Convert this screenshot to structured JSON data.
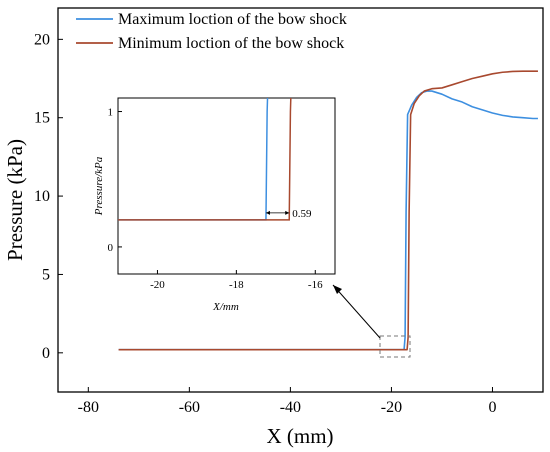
{
  "chart_data": {
    "type": "line",
    "xlabel": "X (mm)",
    "ylabel": "Pressure (kPa)",
    "xlim": [
      -86,
      10
    ],
    "ylim": [
      -2.5,
      22
    ],
    "xticks": [
      "-80",
      "-60",
      "-40",
      "-20",
      "0"
    ],
    "xtick_values": [
      -80,
      -60,
      -40,
      -20,
      0
    ],
    "yticks": [
      "0",
      "5",
      "10",
      "15",
      "20"
    ],
    "ytick_values": [
      0,
      5,
      10,
      15,
      20
    ],
    "legend_position": "top-left",
    "grid": false,
    "series": [
      {
        "name": "Maximum loction of the bow shock",
        "color": "#3d8fe0",
        "x": [
          -74,
          -17.5,
          -17.3,
          -17.1,
          -16.8,
          -16,
          -15,
          -14,
          -13,
          -12,
          -10,
          -8,
          -6,
          -4,
          -2,
          0,
          2,
          4,
          6,
          8,
          9
        ],
        "y": [
          0.2,
          0.2,
          1.0,
          9.0,
          15.2,
          15.8,
          16.3,
          16.6,
          16.7,
          16.7,
          16.5,
          16.2,
          16.0,
          15.7,
          15.5,
          15.3,
          15.15,
          15.05,
          15.0,
          14.95,
          14.95
        ]
      },
      {
        "name": "Minimum loction of the bow shock",
        "color": "#a8492f",
        "x": [
          -74,
          -16.9,
          -16.7,
          -16.5,
          -16.2,
          -15.5,
          -14.5,
          -13.5,
          -12,
          -10,
          -8,
          -6,
          -4,
          -2,
          0,
          2,
          4,
          6,
          8,
          9
        ],
        "y": [
          0.2,
          0.2,
          1.0,
          9.0,
          15.2,
          15.9,
          16.4,
          16.7,
          16.85,
          16.9,
          17.1,
          17.3,
          17.5,
          17.65,
          17.8,
          17.9,
          17.95,
          17.97,
          17.97,
          17.97
        ]
      }
    ],
    "inset": {
      "xlabel": "X/mm",
      "ylabel": "Pressure/kPa",
      "xlim": [
        -21,
        -15.5
      ],
      "ylim": [
        -0.2,
        1.1
      ],
      "xticks": [
        "-20",
        "-18",
        "-16"
      ],
      "xtick_values": [
        -20,
        -18,
        -16
      ],
      "yticks": [
        "0",
        "1"
      ],
      "ytick_values": [
        0,
        1
      ],
      "annotation": "0.59",
      "annotation_y": 0.2,
      "series": [
        {
          "name": "Maximum loction of the bow shock",
          "color": "#3d8fe0",
          "x": [
            -21,
            -17.25,
            -17.22,
            -17.2
          ],
          "y": [
            0.2,
            0.2,
            1.0,
            1.2
          ]
        },
        {
          "name": "Minimum loction of the bow shock",
          "color": "#a8492f",
          "x": [
            -21,
            -16.66,
            -16.63,
            -16.61
          ],
          "y": [
            0.2,
            0.2,
            1.0,
            1.2
          ]
        }
      ]
    }
  }
}
